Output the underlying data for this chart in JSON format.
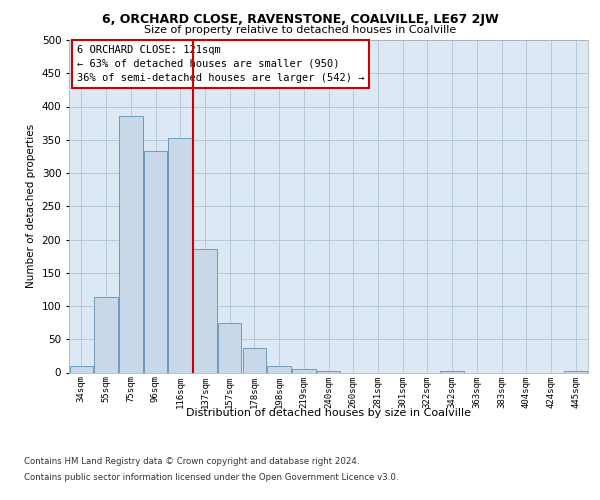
{
  "title": "6, ORCHARD CLOSE, RAVENSTONE, COALVILLE, LE67 2JW",
  "subtitle": "Size of property relative to detached houses in Coalville",
  "xlabel": "Distribution of detached houses by size in Coalville",
  "ylabel": "Number of detached properties",
  "footer1": "Contains HM Land Registry data © Crown copyright and database right 2024.",
  "footer2": "Contains public sector information licensed under the Open Government Licence v3.0.",
  "categories": [
    "34sqm",
    "55sqm",
    "75sqm",
    "96sqm",
    "116sqm",
    "137sqm",
    "157sqm",
    "178sqm",
    "198sqm",
    "219sqm",
    "240sqm",
    "260sqm",
    "281sqm",
    "301sqm",
    "322sqm",
    "342sqm",
    "363sqm",
    "383sqm",
    "404sqm",
    "424sqm",
    "445sqm"
  ],
  "values": [
    10,
    113,
    385,
    333,
    353,
    185,
    75,
    37,
    10,
    6,
    2,
    0,
    0,
    0,
    0,
    3,
    0,
    0,
    0,
    0,
    3
  ],
  "bar_color": "#c8d8e8",
  "bar_edge_color": "#6a9cbf",
  "grid_color": "#b0c4d8",
  "background_color": "#dce9f5",
  "vline_x": 4.5,
  "vline_color": "#cc0000",
  "annotation_text": "6 ORCHARD CLOSE: 121sqm\n← 63% of detached houses are smaller (950)\n36% of semi-detached houses are larger (542) →",
  "annotation_box_color": "#cc0000",
  "ylim": [
    0,
    500
  ],
  "yticks": [
    0,
    50,
    100,
    150,
    200,
    250,
    300,
    350,
    400,
    450,
    500
  ]
}
